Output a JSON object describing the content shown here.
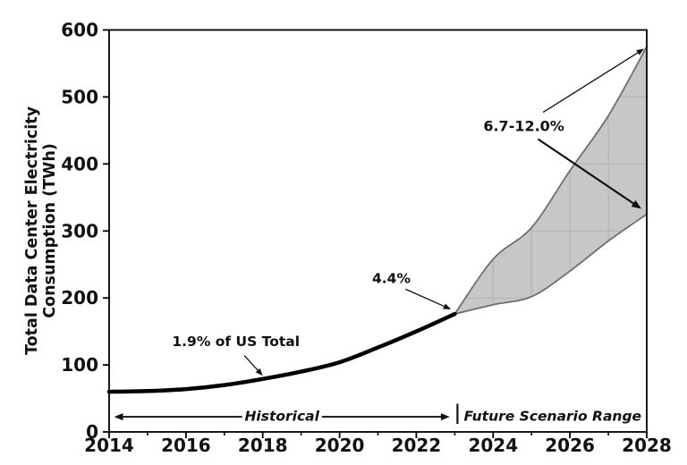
{
  "chart_data": {
    "type": "area",
    "title": "",
    "xlabel": "",
    "ylabel": "Total Data Center Electricity Consumption (TWh)",
    "ylabel_lines": [
      "Total Data Center Electricity",
      "Consumption (TWh)"
    ],
    "xlim": [
      2014,
      2028
    ],
    "ylim": [
      0,
      600
    ],
    "x_major_ticks": [
      2014,
      2016,
      2018,
      2020,
      2022,
      2024,
      2026,
      2028
    ],
    "x_minor_ticks": [
      2015,
      2017,
      2019,
      2021,
      2023,
      2025,
      2027
    ],
    "y_major_ticks": [
      0,
      100,
      200,
      300,
      400,
      500,
      600
    ],
    "grid_x": [
      2024,
      2025,
      2026,
      2027
    ],
    "grid_y": [
      100,
      200,
      300,
      400,
      500
    ],
    "grid_note": "gridlines visible only inside shaded band",
    "legend_position": "none",
    "series": [
      {
        "name": "Historical",
        "type": "line",
        "x": [
          2014,
          2015,
          2016,
          2017,
          2018,
          2019,
          2020,
          2021,
          2022,
          2023
        ],
        "values": [
          60,
          61,
          64,
          70,
          79,
          90,
          104,
          126,
          150,
          176
        ]
      },
      {
        "name": "Future Scenario Range",
        "type": "band",
        "x": [
          2023,
          2024,
          2025,
          2026,
          2027,
          2028
        ],
        "lower": [
          176,
          190,
          202,
          240,
          285,
          325
        ],
        "upper": [
          176,
          258,
          305,
          390,
          472,
          575
        ]
      }
    ],
    "annotations": [
      {
        "label": "1.9% of US Total",
        "x": 2017.3,
        "y": 134,
        "arrows": [
          {
            "x1": 2017.52,
            "y1": 114,
            "x2": 2018.0,
            "y2": 84,
            "w": 1.3
          }
        ]
      },
      {
        "label": "4.4%",
        "x": 2021.35,
        "y": 228,
        "arrows": [
          {
            "x1": 2021.72,
            "y1": 213,
            "x2": 2022.9,
            "y2": 183,
            "w": 1.3
          }
        ]
      },
      {
        "label": "6.7-12.0%",
        "x": 2024.8,
        "y": 455,
        "arrows": [
          {
            "x1": 2025.3,
            "y1": 477,
            "x2": 2027.93,
            "y2": 572,
            "w": 1.3
          },
          {
            "x1": 2025.17,
            "y1": 437,
            "x2": 2027.86,
            "y2": 333,
            "w": 2.2
          }
        ]
      }
    ],
    "span_arrows": [
      {
        "label": "Historical",
        "x1": 2014.13,
        "x2": 2022.87,
        "y": 22.5,
        "label_x": 2018.5
      },
      {
        "label": "Future Scenario Range",
        "x1": 2023.25,
        "x2": 2027.9,
        "y": 22.5,
        "label_x": 2025.55
      }
    ],
    "separator": {
      "x": 2023.07,
      "y1": 12,
      "y2": 42
    }
  },
  "colors": {
    "background": "#ffffff",
    "spine": "#000000",
    "text": "#111111",
    "line": "#000000",
    "band_fill": "#c7c7c7",
    "band_edge": "#6e6e6e",
    "grid": "#b3b3b3"
  }
}
